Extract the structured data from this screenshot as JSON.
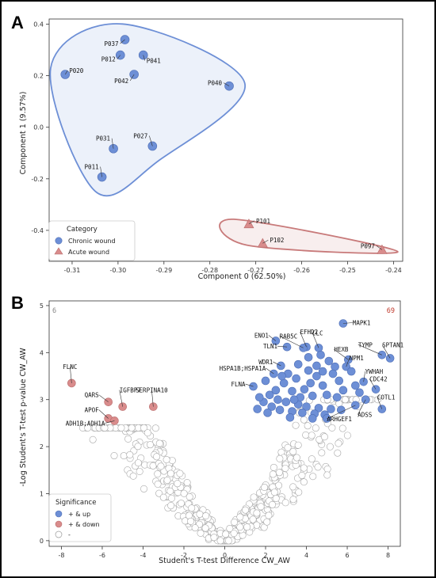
{
  "chart_data": [
    {
      "type": "scatter",
      "panel_label": "A",
      "xlabel": "Component 0 (62.50%)",
      "ylabel": "Component 1 (9.57%)",
      "xlim": [
        -0.315,
        -0.238
      ],
      "ylim": [
        -0.52,
        0.42
      ],
      "x_ticks": [
        -0.31,
        -0.3,
        -0.29,
        -0.28,
        -0.27,
        -0.26,
        -0.25,
        -0.24
      ],
      "x_tick_labels": [
        "-0.31",
        "-0.30",
        "-0.29",
        "-0.28",
        "-0.27",
        "-0.26",
        "-0.25",
        "-0.24"
      ],
      "y_ticks": [
        -0.4,
        -0.2,
        0.0,
        0.2,
        0.4
      ],
      "y_tick_labels": [
        "-0.4",
        "-0.2",
        "0.0",
        "0.2",
        "0.4"
      ],
      "grid": false,
      "legend": {
        "title": "Category",
        "placement": "bottom-left",
        "entries": [
          {
            "name": "Chronic wound",
            "marker": "circle",
            "color": "#6d8fd6"
          },
          {
            "name": "Acute wound",
            "marker": "triangle",
            "color": "#d98c8c"
          }
        ]
      },
      "series": [
        {
          "name": "Chronic wound",
          "color": "#6d8fd6",
          "hull_color": "#6d8fd6",
          "points": [
            {
              "label": "P037",
              "x": -0.2985,
              "y": 0.34
            },
            {
              "label": "P012",
              "x": -0.2995,
              "y": 0.28
            },
            {
              "label": "P041",
              "x": -0.2945,
              "y": 0.28
            },
            {
              "label": "P020",
              "x": -0.3115,
              "y": 0.205
            },
            {
              "label": "P042",
              "x": -0.2965,
              "y": 0.205
            },
            {
              "label": "P040",
              "x": -0.2758,
              "y": 0.16
            },
            {
              "label": "P031",
              "x": -0.301,
              "y": -0.083
            },
            {
              "label": "P027",
              "x": -0.2925,
              "y": -0.073
            },
            {
              "label": "P011",
              "x": -0.3035,
              "y": -0.193
            }
          ]
        },
        {
          "name": "Acute wound",
          "color": "#d98c8c",
          "hull_color": "#c87a7a",
          "points": [
            {
              "label": "P101",
              "x": -0.2715,
              "y": -0.375
            },
            {
              "label": "P102",
              "x": -0.2685,
              "y": -0.45
            },
            {
              "label": "P097",
              "x": -0.2425,
              "y": -0.475
            }
          ]
        }
      ]
    },
    {
      "type": "scatter",
      "panel_label": "B",
      "xlabel": "Student's T-test Difference CW_AW",
      "ylabel": "-Log Student's T-test p-value CW_AW",
      "xlim": [
        -8.6,
        8.6
      ],
      "ylim": [
        -0.12,
        5.1
      ],
      "x_ticks": [
        -8,
        -6,
        -4,
        -2,
        0,
        2,
        4,
        6,
        8
      ],
      "x_tick_labels": [
        "-8",
        "-6",
        "-4",
        "-2",
        "0",
        "2",
        "4",
        "6",
        "8"
      ],
      "y_ticks": [
        0,
        1,
        2,
        3,
        4,
        5
      ],
      "y_tick_labels": [
        "0",
        "1",
        "2",
        "3",
        "4",
        "5"
      ],
      "grid": false,
      "corner_counts": {
        "left": "6",
        "right": "69"
      },
      "legend": {
        "title": "Significance",
        "placement": "bottom-left",
        "entries": [
          {
            "name": "+ & up",
            "color": "#6d8fd6"
          },
          {
            "name": "+ & down",
            "color": "#d98c8c"
          },
          {
            "name": "-",
            "color": "#ffffff"
          }
        ]
      },
      "series": [
        {
          "name": "+ & up",
          "color": "#6d8fd6",
          "points": [
            {
              "label": "MAPK1",
              "x": 5.8,
              "y": 4.62
            },
            {
              "label": "ENO1",
              "x": 2.5,
              "y": 4.25
            },
            {
              "label": "EFHD2",
              "x": 4.0,
              "y": 4.12
            },
            {
              "label": "RAB5C",
              "x": 3.85,
              "y": 4.1
            },
            {
              "label": "TLN1",
              "x": 3.05,
              "y": 4.12
            },
            {
              "label": "CLC",
              "x": 4.6,
              "y": 4.1
            },
            {
              "label": "SPTAN1",
              "x": 8.1,
              "y": 3.88
            },
            {
              "label": "TYMP",
              "x": 7.7,
              "y": 3.95
            },
            {
              "label": "HEXB",
              "x": 6.05,
              "y": 3.85
            },
            {
              "label": "NPM1",
              "x": 5.95,
              "y": 3.7
            },
            {
              "label": "WDR1",
              "x": 2.75,
              "y": 3.72
            },
            {
              "label": "HSPA1B;HSPA1A",
              "x": 2.4,
              "y": 3.55
            },
            {
              "label": "YWHAH",
              "x": 6.8,
              "y": 3.38
            },
            {
              "label": "CDC42",
              "x": 7.4,
              "y": 3.22
            },
            {
              "label": "FLNA",
              "x": 1.4,
              "y": 3.28
            },
            {
              "label": "COTL1",
              "x": 7.7,
              "y": 2.8
            },
            {
              "label": "ADSS",
              "x": 6.9,
              "y": 3.0
            },
            {
              "label": "ARHGEF1",
              "x": 6.4,
              "y": 2.88
            },
            {
              "label": "",
              "x": 3.1,
              "y": 3.55
            },
            {
              "label": "",
              "x": 3.5,
              "y": 3.45
            },
            {
              "label": "",
              "x": 4.1,
              "y": 3.62
            },
            {
              "label": "",
              "x": 4.5,
              "y": 3.5
            },
            {
              "label": "",
              "x": 5.1,
              "y": 3.82
            },
            {
              "label": "",
              "x": 5.4,
              "y": 3.7
            },
            {
              "label": "",
              "x": 4.8,
              "y": 3.3
            },
            {
              "label": "",
              "x": 5.6,
              "y": 3.4
            },
            {
              "label": "",
              "x": 6.2,
              "y": 3.6
            },
            {
              "label": "",
              "x": 2.9,
              "y": 3.35
            },
            {
              "label": "",
              "x": 3.3,
              "y": 3.18
            },
            {
              "label": "",
              "x": 3.9,
              "y": 3.22
            },
            {
              "label": "",
              "x": 4.3,
              "y": 3.08
            },
            {
              "label": "",
              "x": 5.0,
              "y": 3.1
            },
            {
              "label": "",
              "x": 5.5,
              "y": 3.05
            },
            {
              "label": "",
              "x": 6.6,
              "y": 3.15
            },
            {
              "label": "",
              "x": 2.2,
              "y": 3.1
            },
            {
              "label": "",
              "x": 2.6,
              "y": 3.0
            },
            {
              "label": "",
              "x": 3.0,
              "y": 2.95
            },
            {
              "label": "",
              "x": 3.6,
              "y": 2.9
            },
            {
              "label": "",
              "x": 4.0,
              "y": 2.85
            },
            {
              "label": "",
              "x": 4.6,
              "y": 2.82
            },
            {
              "label": "",
              "x": 5.2,
              "y": 2.8
            },
            {
              "label": "",
              "x": 1.9,
              "y": 2.95
            },
            {
              "label": "",
              "x": 2.3,
              "y": 2.85
            },
            {
              "label": "",
              "x": 2.7,
              "y": 2.78
            },
            {
              "label": "",
              "x": 3.3,
              "y": 2.75
            },
            {
              "label": "",
              "x": 3.8,
              "y": 2.72
            },
            {
              "label": "",
              "x": 4.4,
              "y": 2.7
            },
            {
              "label": "",
              "x": 4.9,
              "y": 2.68
            },
            {
              "label": "",
              "x": 5.7,
              "y": 2.78
            },
            {
              "label": "",
              "x": 1.7,
              "y": 3.05
            },
            {
              "label": "",
              "x": 2.0,
              "y": 3.4
            },
            {
              "label": "",
              "x": 3.6,
              "y": 3.75
            },
            {
              "label": "",
              "x": 4.7,
              "y": 3.95
            },
            {
              "label": "",
              "x": 5.3,
              "y": 3.55
            },
            {
              "label": "",
              "x": 1.6,
              "y": 2.8
            },
            {
              "label": "",
              "x": 2.1,
              "y": 2.72
            },
            {
              "label": "",
              "x": 2.5,
              "y": 3.2
            },
            {
              "label": "",
              "x": 3.2,
              "y": 2.62
            },
            {
              "label": "",
              "x": 3.7,
              "y": 3.05
            },
            {
              "label": "",
              "x": 4.2,
              "y": 3.35
            },
            {
              "label": "",
              "x": 4.5,
              "y": 3.72
            },
            {
              "label": "",
              "x": 5.8,
              "y": 3.2
            },
            {
              "label": "",
              "x": 6.4,
              "y": 3.3
            },
            {
              "label": "",
              "x": 5.0,
              "y": 2.6
            },
            {
              "label": "",
              "x": 4.8,
              "y": 3.6
            },
            {
              "label": "",
              "x": 3.4,
              "y": 3.0
            },
            {
              "label": "",
              "x": 2.8,
              "y": 3.5
            },
            {
              "label": "",
              "x": 4.3,
              "y": 2.6
            },
            {
              "label": "",
              "x": 4.1,
              "y": 3.9
            }
          ]
        },
        {
          "name": "+ & down",
          "color": "#d98c8c",
          "points": [
            {
              "label": "FLNC",
              "x": -7.5,
              "y": 3.35
            },
            {
              "label": "QARS",
              "x": -5.7,
              "y": 2.95
            },
            {
              "label": "IGFBP7",
              "x": -5.0,
              "y": 2.85
            },
            {
              "label": "SERPINA10",
              "x": -3.5,
              "y": 2.85
            },
            {
              "label": "APOF",
              "x": -5.7,
              "y": 2.6
            },
            {
              "label": "ADH1B;ADH1A",
              "x": -5.4,
              "y": 2.55
            }
          ]
        }
      ]
    }
  ]
}
